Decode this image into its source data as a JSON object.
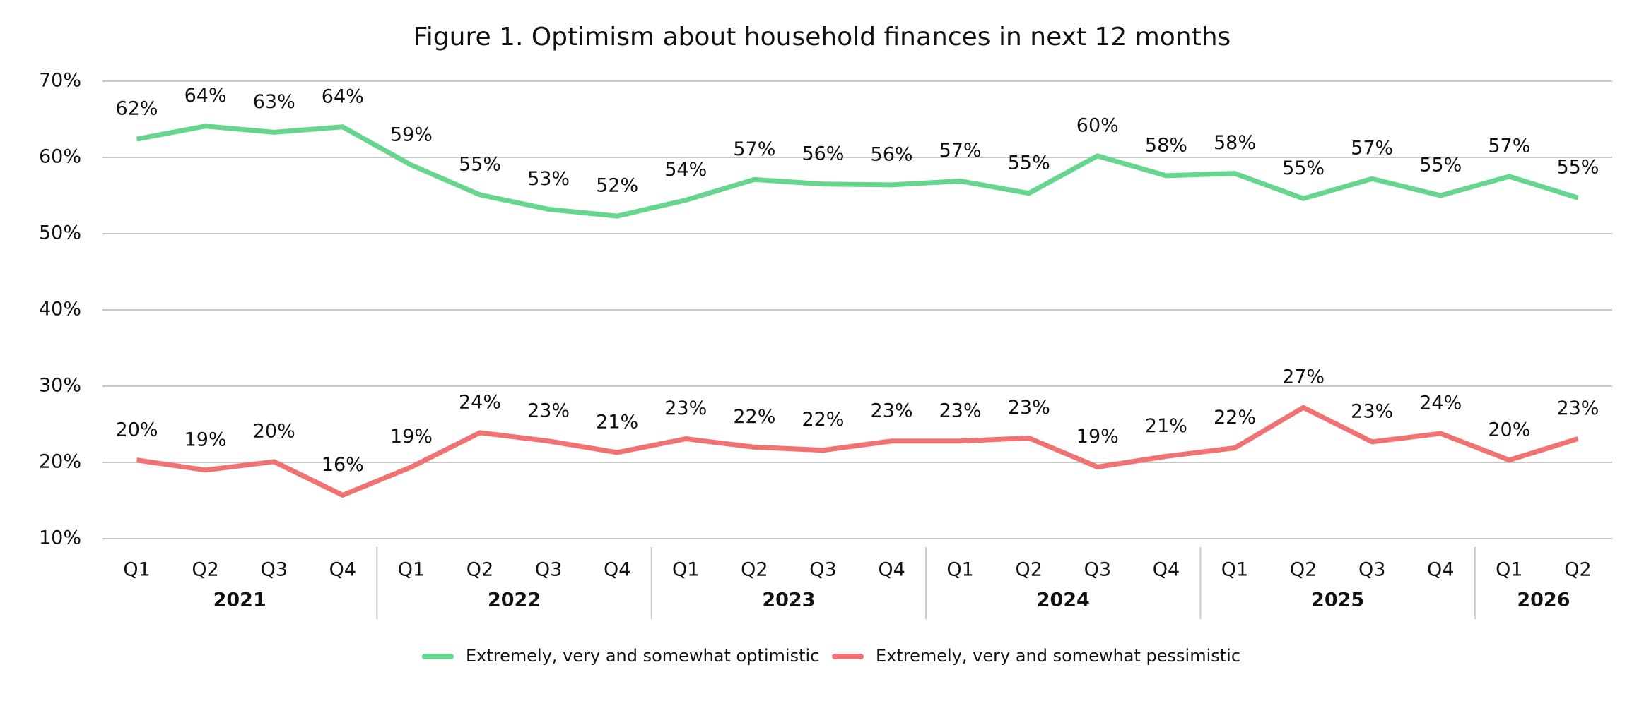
{
  "chart_data": {
    "type": "line",
    "title": "Figure 1. Optimism about household finances in next 12 months",
    "groups": [
      {
        "name": "2021",
        "categories": [
          "Q1",
          "Q2",
          "Q3",
          "Q4"
        ]
      },
      {
        "name": "2022",
        "categories": [
          "Q1",
          "Q2",
          "Q3",
          "Q4"
        ]
      },
      {
        "name": "2023",
        "categories": [
          "Q1",
          "Q2",
          "Q3",
          "Q4"
        ]
      },
      {
        "name": "2024",
        "categories": [
          "Q1",
          "Q2",
          "Q3",
          "Q4"
        ]
      },
      {
        "name": "2025",
        "categories": [
          "Q1",
          "Q2",
          "Q3",
          "Q4"
        ]
      },
      {
        "name": "2026",
        "categories": [
          "Q1",
          "Q2"
        ]
      }
    ],
    "series": [
      {
        "name": "Extremely, very and somewhat optimistic",
        "color": "#66d68f",
        "values": [
          62.4,
          64.1,
          63.3,
          64.0,
          59.0,
          55.1,
          53.2,
          52.3,
          54.4,
          57.1,
          56.5,
          56.4,
          56.9,
          55.3,
          60.2,
          57.6,
          57.9,
          54.6,
          57.2,
          55.0,
          57.5,
          54.7
        ],
        "value_labels": [
          "62%",
          "64%",
          "63%",
          "64%",
          "59%",
          "55%",
          "53%",
          "52%",
          "54%",
          "57%",
          "56%",
          "56%",
          "57%",
          "55%",
          "60%",
          "58%",
          "58%",
          "55%",
          "57%",
          "55%",
          "57%",
          "55%"
        ]
      },
      {
        "name": "Extremely, very and somewhat pessimistic",
        "color": "#f07272",
        "values": [
          20.3,
          19.0,
          20.1,
          15.7,
          19.4,
          23.9,
          22.8,
          21.3,
          23.1,
          22.0,
          21.6,
          22.8,
          22.8,
          23.2,
          19.4,
          20.8,
          21.9,
          27.2,
          22.7,
          23.8,
          20.3,
          23.1
        ],
        "value_labels": [
          "20%",
          "19%",
          "20%",
          "16%",
          "19%",
          "24%",
          "23%",
          "21%",
          "23%",
          "22%",
          "22%",
          "23%",
          "23%",
          "23%",
          "19%",
          "21%",
          "22%",
          "27%",
          "23%",
          "24%",
          "20%",
          "23%"
        ]
      }
    ],
    "ylim": [
      10,
      70
    ],
    "yticks": [
      {
        "value": 10,
        "label": "10%"
      },
      {
        "value": 20,
        "label": "20%"
      },
      {
        "value": 30,
        "label": "30%"
      },
      {
        "value": 40,
        "label": "40%"
      },
      {
        "value": 50,
        "label": "50%"
      },
      {
        "value": 60,
        "label": "60%"
      },
      {
        "value": 70,
        "label": "70%"
      }
    ],
    "grid": true,
    "legend": "bottom"
  }
}
